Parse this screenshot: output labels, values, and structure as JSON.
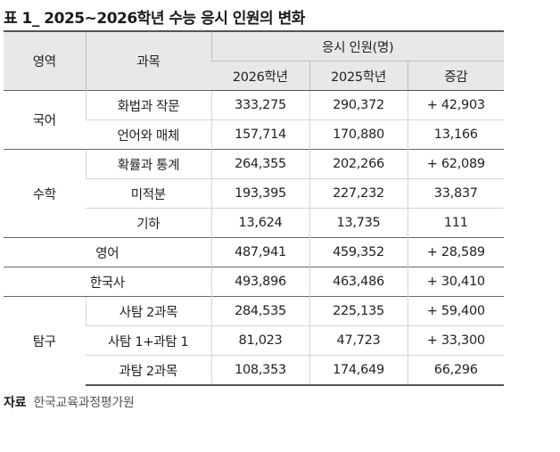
{
  "title": "표 1_ 2025~2026학년 수능 응시 인원의 변화",
  "headers": {
    "area": "영역",
    "subject": "과목",
    "group": "응시 인원(명)",
    "y2026": "2026학년",
    "y2025": "2025학년",
    "change": "증감"
  },
  "areas": {
    "korean": "국어",
    "math": "수학",
    "explore": "탐구"
  },
  "rows": [
    {
      "subject": "화법과 작문",
      "y2026": "333,275",
      "y2025": "290,372",
      "change": "+ 42,903"
    },
    {
      "subject": "언어와 매체",
      "y2026": "157,714",
      "y2025": "170,880",
      "change": "13,166"
    },
    {
      "subject": "확률과 통계",
      "y2026": "264,355",
      "y2025": "202,266",
      "change": "+ 62,089"
    },
    {
      "subject": "미적분",
      "y2026": "193,395",
      "y2025": "227,232",
      "change": "33,837"
    },
    {
      "subject": "기하",
      "y2026": "13,624",
      "y2025": "13,735",
      "change": "111"
    },
    {
      "subject": "영어",
      "y2026": "487,941",
      "y2025": "459,352",
      "change": "+ 28,589"
    },
    {
      "subject": "한국사",
      "y2026": "493,896",
      "y2025": "463,486",
      "change": "+ 30,410"
    },
    {
      "subject": "사탐 2과목",
      "y2026": "284,535",
      "y2025": "225,135",
      "change": "+ 59,400"
    },
    {
      "subject": "사탐 1+과탐 1",
      "y2026": "81,023",
      "y2025": "47,723",
      "change": "+ 33,300"
    },
    {
      "subject": "과탐 2과목",
      "y2026": "108,353",
      "y2025": "174,649",
      "change": "66,296"
    }
  ],
  "source": {
    "label": "자료",
    "text": "한국교육과정평가원"
  }
}
